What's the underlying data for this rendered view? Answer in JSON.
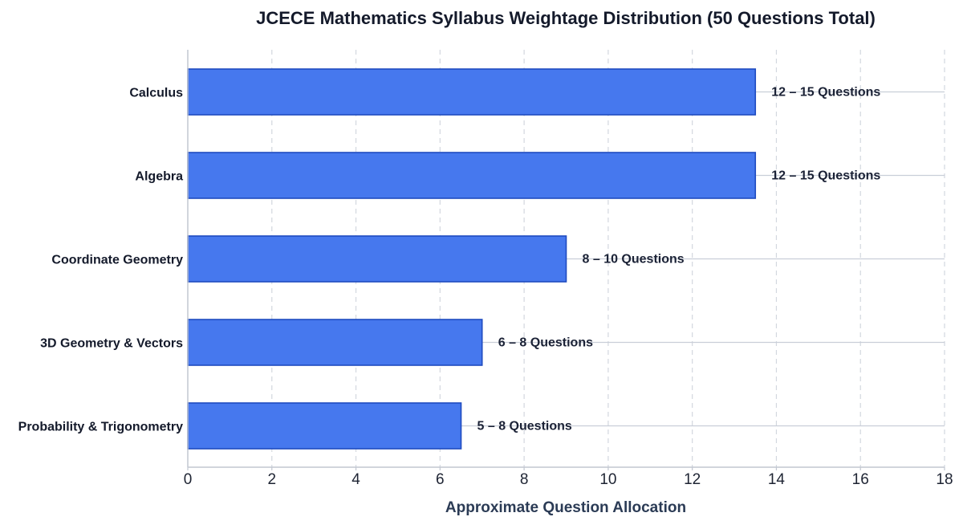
{
  "chart_data": {
    "type": "bar",
    "orientation": "horizontal",
    "title": "JCECE Mathematics Syllabus Weightage Distribution (50 Questions Total)",
    "xlabel": "Approximate Question Allocation",
    "ylabel": "",
    "xlim": [
      0,
      18
    ],
    "xticks": [
      0,
      2,
      4,
      6,
      8,
      10,
      12,
      14,
      16,
      18
    ],
    "categories": [
      "Calculus",
      "Algebra",
      "Coordinate Geometry",
      "3D Geometry & Vectors",
      "Probability & Trigonometry"
    ],
    "values": [
      13.5,
      13.5,
      9,
      7,
      6.5
    ],
    "data_labels": [
      "12 – 15 Questions",
      "12 – 15 Questions",
      "8 – 10 Questions",
      "6 – 8 Questions",
      "5 – 8 Questions"
    ],
    "bar_color": "#4678ee",
    "bar_edge_color": "#1f4bc0",
    "grid": "x dashed, y solid",
    "legend": "none"
  }
}
